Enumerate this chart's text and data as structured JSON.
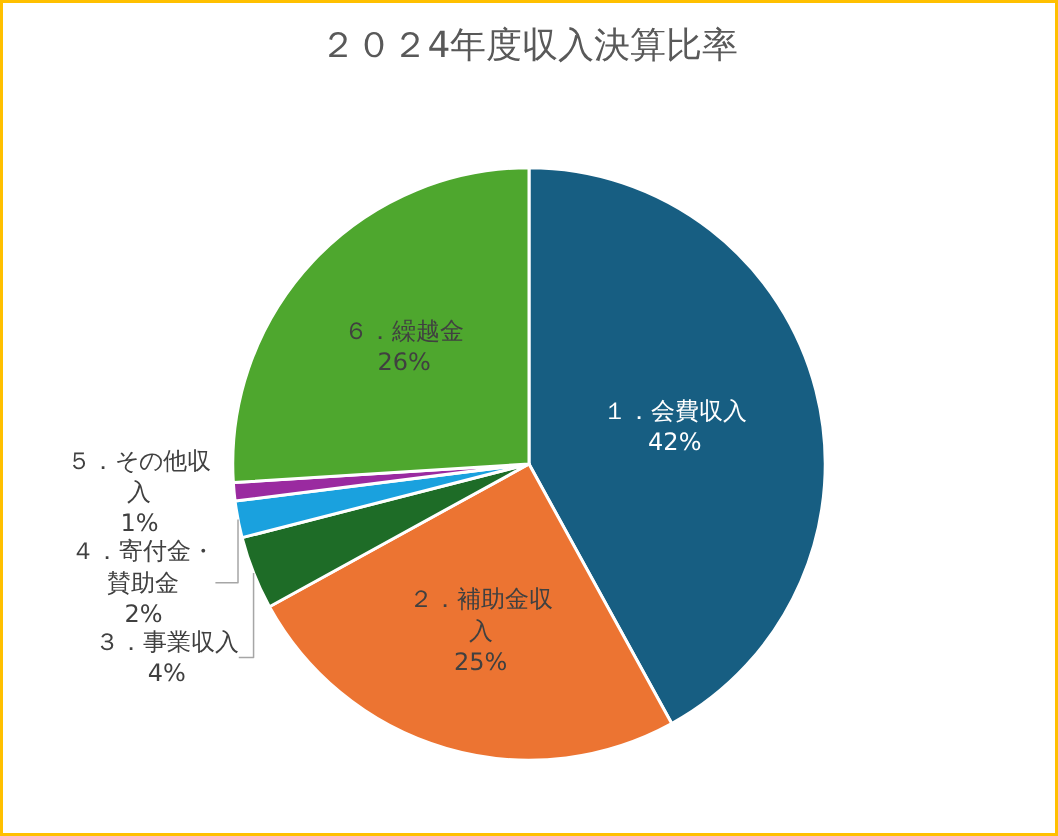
{
  "chart_data": {
    "type": "pie",
    "title": "２０２4年度収入決算比率",
    "categories": [
      "１．会費収入",
      "２．補助金収入",
      "３．事業収入",
      "４．寄付金・賛助金",
      "５．その他収入",
      "６．繰越金"
    ],
    "values": [
      42,
      25,
      4,
      2,
      1,
      26
    ],
    "value_labels": [
      "42%",
      "25%",
      "4%",
      "2%",
      "1%",
      "26%"
    ],
    "colors": [
      "#175e82",
      "#ec7432",
      "#1e6c27",
      "#1aa1de",
      "#9a2aa0",
      "#4ea72e"
    ],
    "legend": false
  }
}
